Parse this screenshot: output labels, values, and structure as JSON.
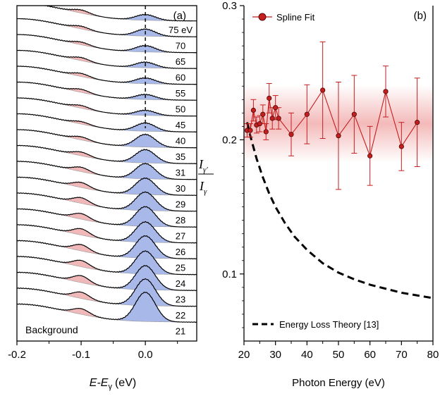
{
  "chart_data": [
    {
      "panel_label": "(a)",
      "type": "area",
      "xlabel": "E-E",
      "xlabel_sub": "γ",
      "xlabel_unit": "(eV)",
      "xlim": [
        -0.2,
        0.08
      ],
      "xticks": [
        "-0.2",
        "-0.1",
        "0.0"
      ],
      "dashed_line_x": 0.0,
      "background_label": "Background",
      "spectra_labels": [
        "75 eV",
        "70",
        "65",
        "60",
        "55",
        "50",
        "45",
        "40",
        "35",
        "31",
        "30",
        "29",
        "28",
        "27",
        "26",
        "25",
        "24",
        "23",
        "22",
        "21"
      ],
      "peak_heights": [
        0.45,
        0.55,
        0.5,
        0.45,
        0.45,
        0.4,
        0.4,
        0.65,
        1.0,
        1.05,
        1.2,
        1.3,
        1.45,
        1.55,
        1.6,
        1.75,
        1.8,
        1.9,
        2.1,
        2.3
      ],
      "sideband_heights": [
        0.25,
        0.22,
        0.22,
        0.25,
        0.25,
        0.25,
        0.22,
        0.2,
        0.25,
        0.3,
        0.35,
        0.4,
        0.45,
        0.45,
        0.5,
        0.5,
        0.5,
        0.55,
        0.5,
        0.45
      ],
      "colors": {
        "main_peak": "#a8b8e8",
        "sideband": "#f0b8b8",
        "background": "#dcdcdc"
      }
    },
    {
      "panel_label": "(b)",
      "type": "scatter",
      "xlabel": "Photon Energy (eV)",
      "ylabel_num": "I",
      "ylabel_num_sub": "γ'",
      "ylabel_den": "I",
      "ylabel_den_sub": "γ",
      "xlim": [
        20,
        80
      ],
      "ylim": [
        0.05,
        0.3
      ],
      "xticks": [
        "20",
        "30",
        "40",
        "50",
        "60",
        "70",
        "80"
      ],
      "yticks": [
        "0.1",
        "0.2",
        "0.3"
      ],
      "series": [
        {
          "name": "Spline Fit",
          "color": "#c41e1e",
          "x": [
            21,
            22,
            23,
            24,
            25,
            26,
            27,
            28,
            29,
            30,
            31,
            35,
            40,
            45,
            50,
            55,
            60,
            65,
            70,
            75
          ],
          "y": [
            0.207,
            0.207,
            0.222,
            0.211,
            0.212,
            0.219,
            0.206,
            0.231,
            0.216,
            0.224,
            0.216,
            0.204,
            0.219,
            0.237,
            0.203,
            0.219,
            0.188,
            0.236,
            0.195,
            0.213
          ],
          "err": [
            0.005,
            0.005,
            0.008,
            0.006,
            0.006,
            0.007,
            0.006,
            0.011,
            0.008,
            0.009,
            0.008,
            0.016,
            0.022,
            0.036,
            0.04,
            0.029,
            0.022,
            0.019,
            0.018,
            0.033
          ]
        },
        {
          "name": "Energy Loss Theory [13]",
          "color": "#000000",
          "style": "dashed",
          "x": [
            21,
            22,
            24,
            26,
            28,
            30,
            33,
            36,
            40,
            45,
            50,
            55,
            60,
            65,
            70,
            75,
            80
          ],
          "y": [
            0.213,
            0.203,
            0.186,
            0.172,
            0.16,
            0.15,
            0.138,
            0.128,
            0.118,
            0.108,
            0.101,
            0.096,
            0.092,
            0.089,
            0.086,
            0.084,
            0.082
          ]
        }
      ],
      "band": {
        "center": 0.212,
        "half_width": 0.012,
        "color": "#e04848"
      }
    }
  ]
}
